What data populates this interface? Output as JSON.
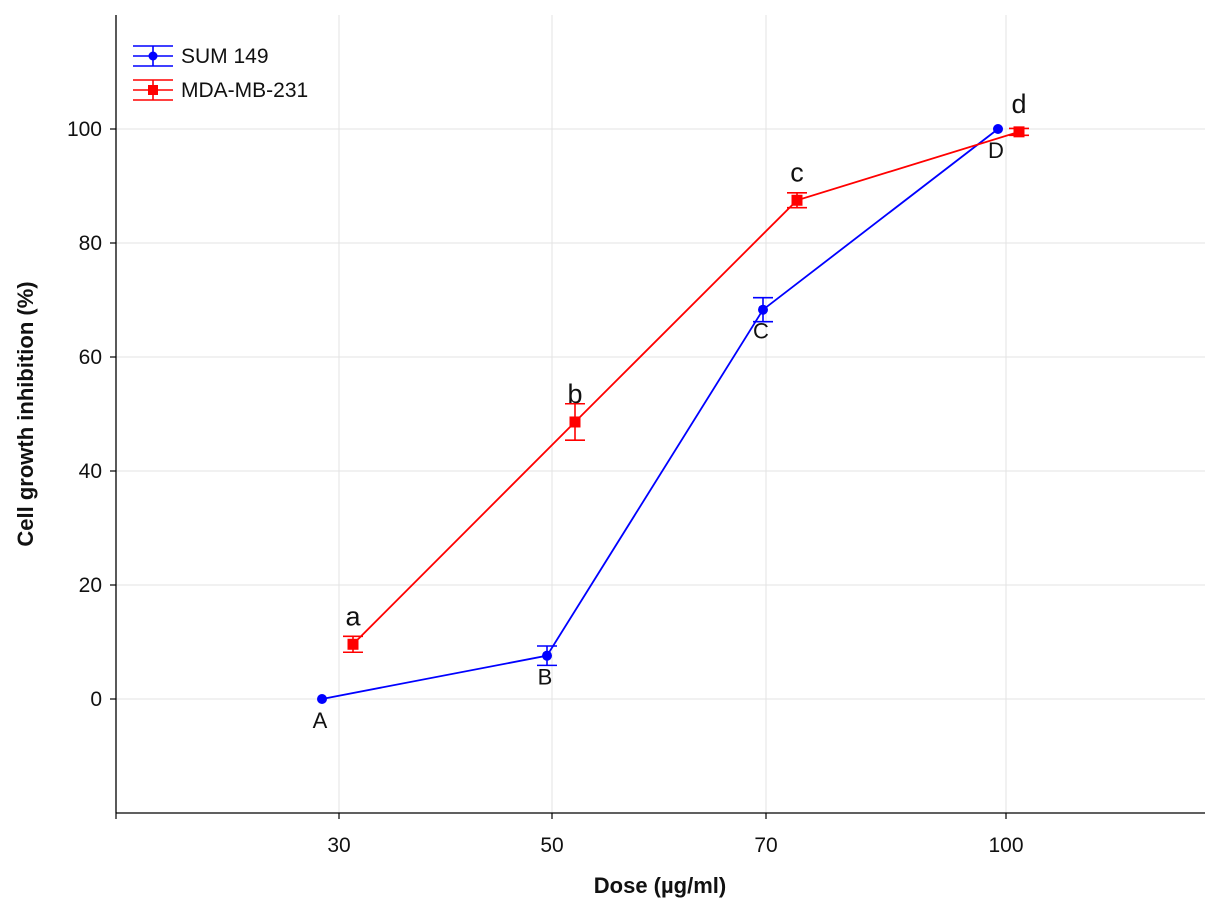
{
  "chart_data": {
    "type": "line",
    "title": "",
    "xlabel": "Dose (µg/ml)",
    "ylabel": "Cell growth inhibition (%)",
    "x_categories": [
      "30",
      "50",
      "70",
      "100"
    ],
    "y_ticks": [
      "0",
      "20",
      "40",
      "60",
      "80",
      "100"
    ],
    "ylim": [
      -20,
      120
    ],
    "grid": true,
    "legend_position": "top-left",
    "series": [
      {
        "name": "SUM 149",
        "color": "#0000ff",
        "marker": "circle",
        "points": [
          {
            "x": "30",
            "y": 0,
            "err": 0,
            "label": "A"
          },
          {
            "x": "50",
            "y": 7.6,
            "err": 1.7,
            "label": "B"
          },
          {
            "x": "70",
            "y": 68.3,
            "err": 2.1,
            "label": "C"
          },
          {
            "x": "100",
            "y": 100,
            "err": 0,
            "label": "D"
          }
        ]
      },
      {
        "name": "MDA-MB-231",
        "color": "#ff0000",
        "marker": "square",
        "points": [
          {
            "x": "30",
            "y": 9.6,
            "err": 1.4,
            "label": "a"
          },
          {
            "x": "50",
            "y": 48.6,
            "err": 3.2,
            "label": "b"
          },
          {
            "x": "70",
            "y": 87.5,
            "err": 1.3,
            "label": "c"
          },
          {
            "x": "100",
            "y": 99.5,
            "err": 0.6,
            "label": "d"
          }
        ]
      }
    ]
  }
}
